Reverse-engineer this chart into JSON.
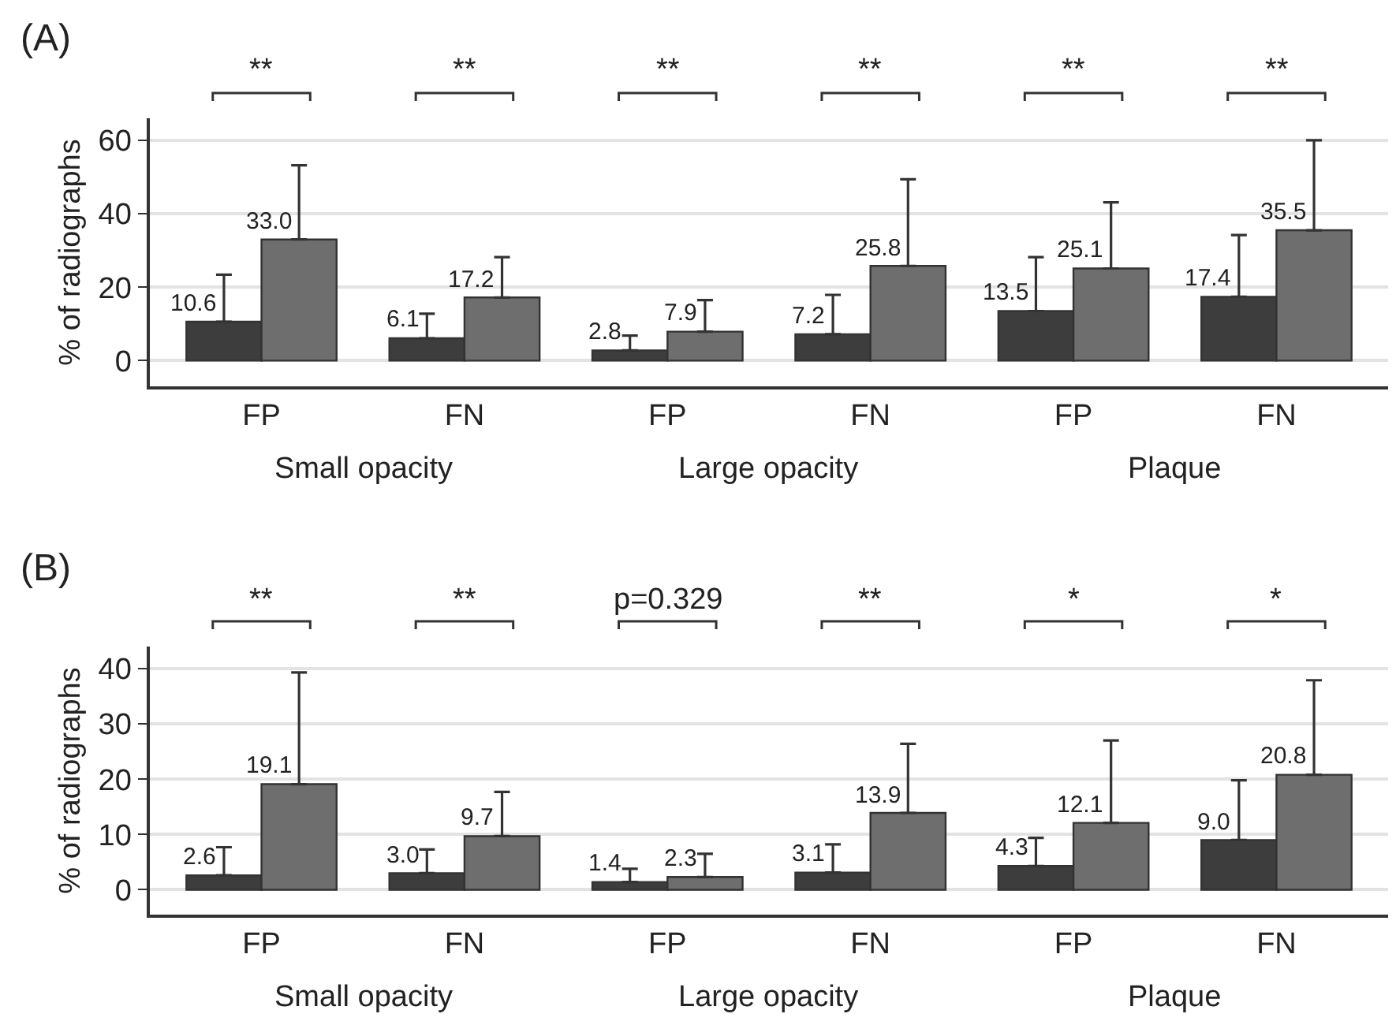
{
  "chart_data": [
    {
      "type": "bar",
      "title": "(A)",
      "ylabel": "% of radiographs",
      "categories": [
        "FP",
        "FN",
        "FP",
        "FN",
        "FP",
        "FN"
      ],
      "series": [
        {
          "color": "#3d3d3d",
          "values": [
            10.6,
            6.1,
            2.8,
            7.2,
            13.5,
            17.4
          ],
          "value_labels": [
            "10.6",
            "6.1",
            "2.8",
            "7.2",
            "13.5",
            "17.4"
          ],
          "errors": [
            [
              10.6,
              23.4
            ],
            [
              6.1,
              12.8
            ],
            [
              2.8,
              6.8
            ],
            [
              7.2,
              17.9
            ],
            [
              13.5,
              28.2
            ],
            [
              17.4,
              34.2
            ]
          ]
        },
        {
          "color": "#6e6e6e",
          "values": [
            33.0,
            17.2,
            7.9,
            25.8,
            25.1,
            35.5
          ],
          "value_labels": [
            "33.0",
            "17.2",
            "7.9",
            "25.8",
            "25.1",
            "35.5"
          ],
          "errors": [
            [
              33.0,
              53.2
            ],
            [
              17.2,
              28.2
            ],
            [
              7.9,
              16.5
            ],
            [
              25.8,
              49.4
            ],
            [
              25.1,
              43.1
            ],
            [
              35.5,
              60.0
            ]
          ]
        }
      ],
      "ylim": [
        -7,
        66
      ],
      "yticks": [
        0,
        20,
        40,
        60
      ],
      "grid": "y",
      "annotations": [
        "**",
        "**",
        "**",
        "**",
        "**",
        "**",
        "Small opacity",
        "Large opacity",
        "Plaque"
      ]
    },
    {
      "type": "bar",
      "title": "(B)",
      "ylabel": "% of radiographs",
      "categories": [
        "FP",
        "FN",
        "FP",
        "FN",
        "FP",
        "FN"
      ],
      "series": [
        {
          "color": "#3d3d3d",
          "values": [
            2.6,
            3.0,
            1.4,
            3.1,
            4.3,
            9.0
          ],
          "value_labels": [
            "2.6",
            "3.0",
            "1.4",
            "3.1",
            "4.3",
            "9.0"
          ],
          "errors": [
            [
              2.6,
              7.7
            ],
            [
              3.0,
              7.3
            ],
            [
              1.4,
              3.8
            ],
            [
              3.1,
              8.2
            ],
            [
              4.3,
              9.4
            ],
            [
              9.0,
              19.8
            ]
          ]
        },
        {
          "color": "#6e6e6e",
          "values": [
            19.1,
            9.7,
            2.3,
            13.9,
            12.1,
            20.8
          ],
          "value_labels": [
            "19.1",
            "9.7",
            "2.3",
            "13.9",
            "12.1",
            "20.8"
          ],
          "errors": [
            [
              19.1,
              39.3
            ],
            [
              9.7,
              17.7
            ],
            [
              2.3,
              6.5
            ],
            [
              13.9,
              26.4
            ],
            [
              12.1,
              27.0
            ],
            [
              20.8,
              37.9
            ]
          ]
        }
      ],
      "ylim": [
        -4.5,
        44
      ],
      "yticks": [
        0,
        10,
        20,
        30,
        40
      ],
      "grid": "y",
      "annotations": [
        "**",
        "**",
        "p=0.329",
        "**",
        "*",
        "*",
        "Small opacity",
        "Large opacity",
        "Plaque"
      ]
    }
  ]
}
